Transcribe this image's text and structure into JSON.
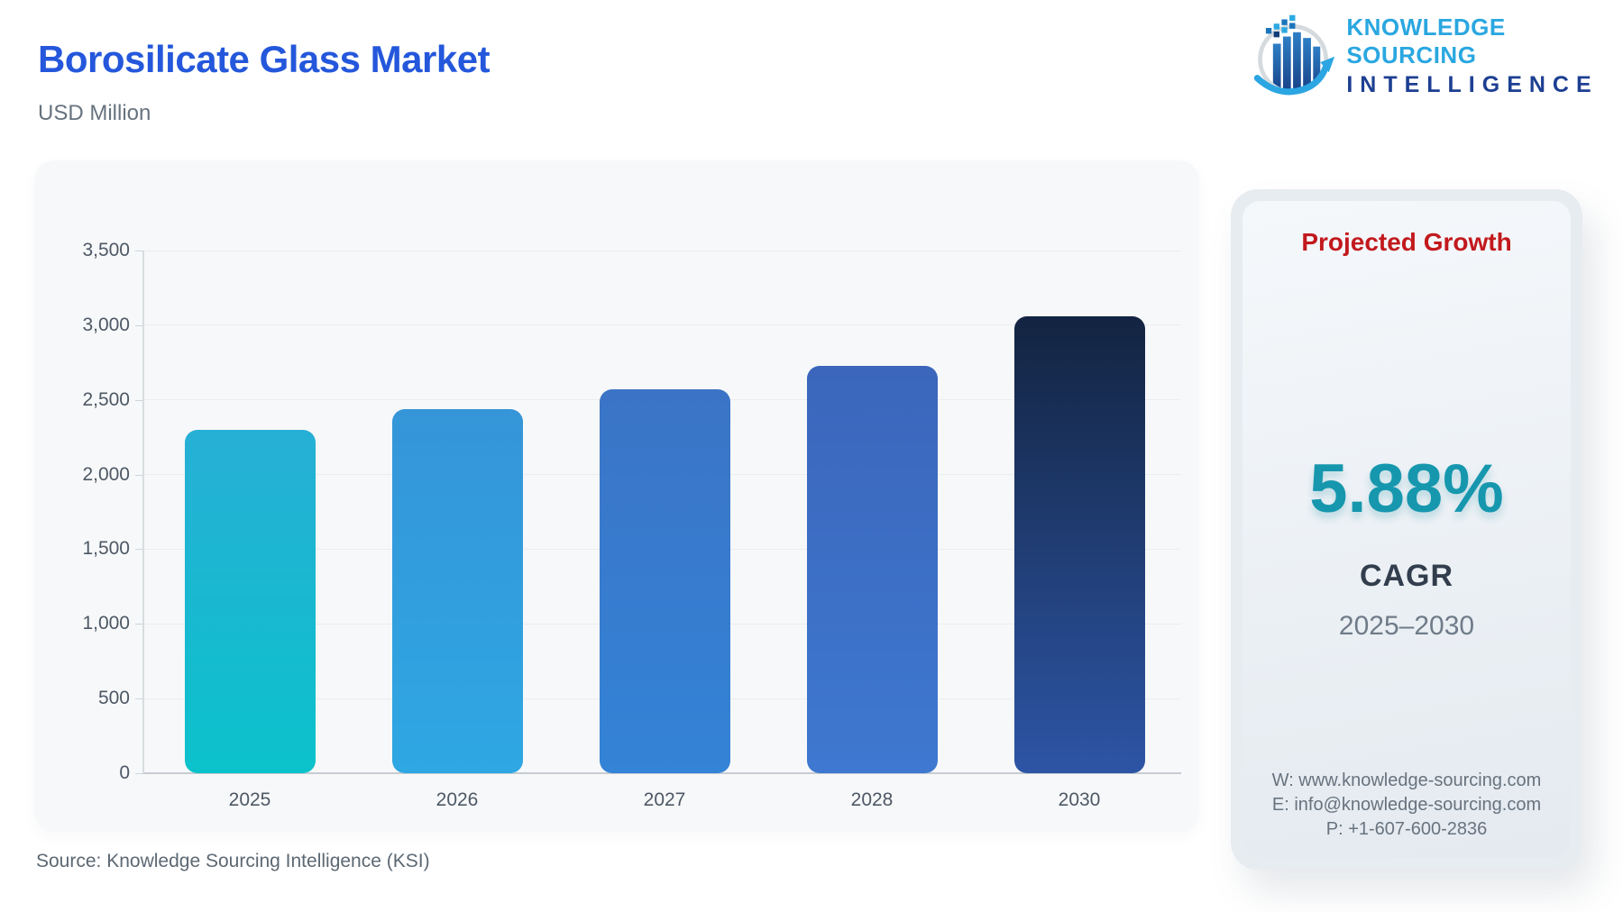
{
  "page": {
    "title": "Borosilicate Glass Market",
    "subtitle": "USD Million",
    "source": "Source: Knowledge Sourcing Intelligence (KSI)"
  },
  "logo": {
    "line1": "KNOWLEDGE SOURCING",
    "line2": "INTELLIGENCE",
    "icon": "bar-chart-growth-arrow-circle",
    "accent_light_blue": "#2aa7e0",
    "accent_dark_blue": "#1d3f92"
  },
  "growth_panel": {
    "heading": "Projected Growth",
    "heading_color": "#c2191d",
    "cagr_value": "5.88%",
    "cagr_value_color": "#1697ae",
    "cagr_label": "CAGR",
    "period": "2025–2030",
    "contact": {
      "website": "W: www.knowledge-sourcing.com",
      "email": "E: info@knowledge-sourcing.com",
      "phone": "P: +1-607-600-2836"
    }
  },
  "chart_data": {
    "type": "bar",
    "title": "Borosilicate Glass Market",
    "unit": "USD Million",
    "categories": [
      "2025",
      "2026",
      "2027",
      "2028",
      "2030"
    ],
    "values": [
      2300,
      2435,
      2570,
      2730,
      3060
    ],
    "ylim": [
      0,
      3500
    ],
    "ytick_step": 500,
    "ytick_labels": [
      "0",
      "500",
      "1,000",
      "1,500",
      "2,000",
      "2,500",
      "3,000",
      "3,500"
    ],
    "grid": true,
    "legend": "none",
    "bar_gradients": [
      [
        "#27afd6",
        "#0bc2cb"
      ],
      [
        "#3595d8",
        "#2ea7e3"
      ],
      [
        "#3b74c6",
        "#3383d7"
      ],
      [
        "#3b66bb",
        "#3e78d0"
      ],
      [
        "#132441",
        "#2d55a5"
      ]
    ]
  }
}
